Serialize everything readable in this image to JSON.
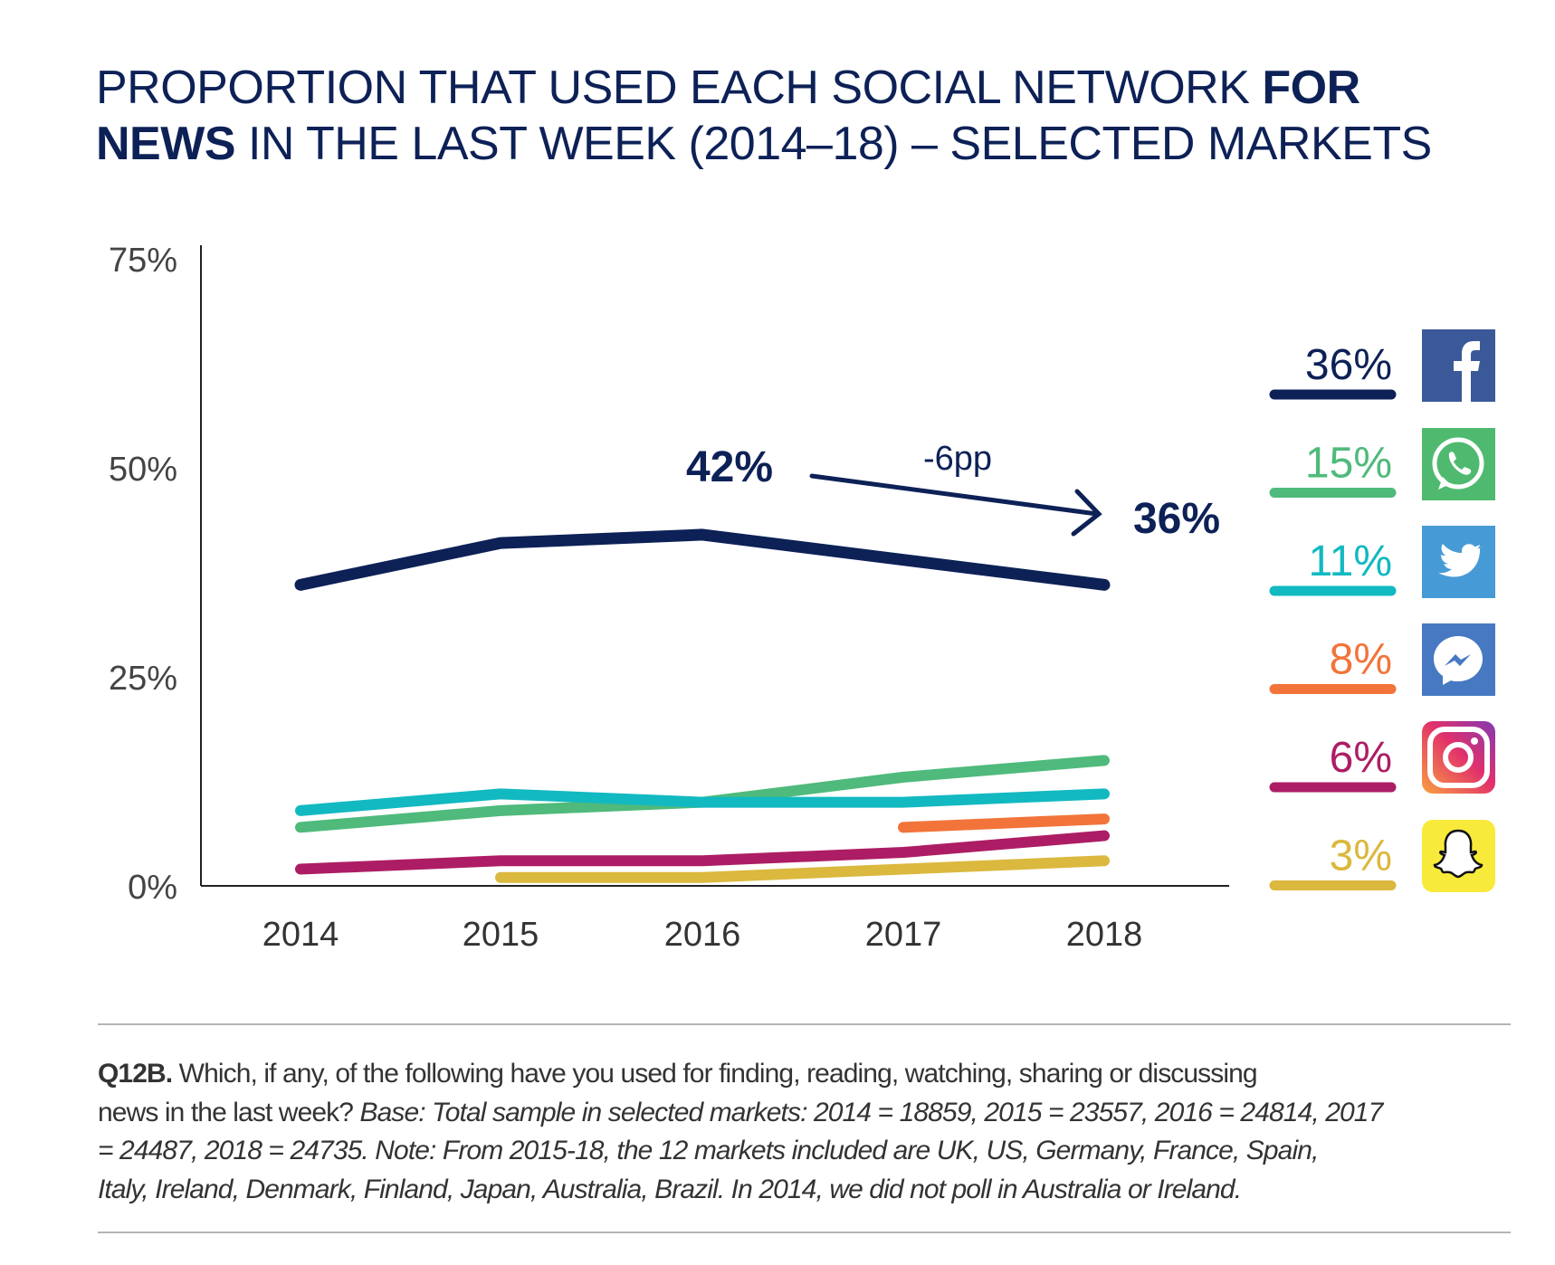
{
  "title": {
    "part1": "PROPORTION THAT USED EACH SOCIAL NETWORK ",
    "bold1": "FOR",
    "bold2": "NEWS",
    "part2": " IN THE LAST WEEK (2014–18) – SELECTED MARKETS"
  },
  "chart_data": {
    "type": "line",
    "title": "PROPORTION THAT USED EACH SOCIAL NETWORK FOR NEWS IN THE LAST WEEK (2014–18) – SELECTED MARKETS",
    "x": [
      "2014",
      "2015",
      "2016",
      "2017",
      "2018"
    ],
    "ylim": [
      0,
      75
    ],
    "yticks": [
      "0%",
      "25%",
      "50%",
      "75%"
    ],
    "ytick_values": [
      0,
      25,
      50,
      75
    ],
    "grid": false,
    "legend_placement": "right",
    "series": [
      {
        "name": "Facebook",
        "icon": "facebook-icon",
        "color": "#0d2157",
        "values": [
          36,
          41,
          42,
          39,
          36
        ],
        "end_label": "36%"
      },
      {
        "name": "WhatsApp",
        "icon": "whatsapp-icon",
        "color": "#4fba7b",
        "values": [
          7,
          9,
          10,
          13,
          15
        ],
        "end_label": "15%"
      },
      {
        "name": "Twitter",
        "icon": "twitter-icon",
        "color": "#12b9c1",
        "values": [
          9,
          11,
          10,
          10,
          11
        ],
        "end_label": "11%"
      },
      {
        "name": "Messenger",
        "icon": "messenger-icon",
        "color": "#f2743a",
        "values": [
          null,
          null,
          null,
          7,
          8
        ],
        "end_label": "8%"
      },
      {
        "name": "Instagram",
        "icon": "instagram-icon",
        "color": "#ad1d65",
        "values": [
          2,
          3,
          3,
          4,
          6
        ],
        "end_label": "6%"
      },
      {
        "name": "Snapchat",
        "icon": "snapchat-icon",
        "color": "#dbb83e",
        "values": [
          null,
          1,
          1,
          2,
          3
        ],
        "end_label": "3%"
      }
    ],
    "annotations": {
      "peak": "42%",
      "change": "-6pp",
      "end": "36%"
    }
  },
  "footnote": {
    "q": "Q12B.",
    "line1": " Which, if any, of the following have you used for finding, reading, watching, sharing or discussing",
    "line2a": "news in the last week? ",
    "line2b": "Base: Total sample in selected markets: 2014 = 18859, 2015 = 23557, 2016 = 24814, 2017",
    "line3": "= 24487, 2018 = 24735. Note: From 2015-18, the 12 markets included are UK, US, Germany, France, Spain,",
    "line4": "Italy, Ireland, Denmark, Finland, Japan, Australia, Brazil. In 2014, we did not poll in Australia or Ireland."
  }
}
